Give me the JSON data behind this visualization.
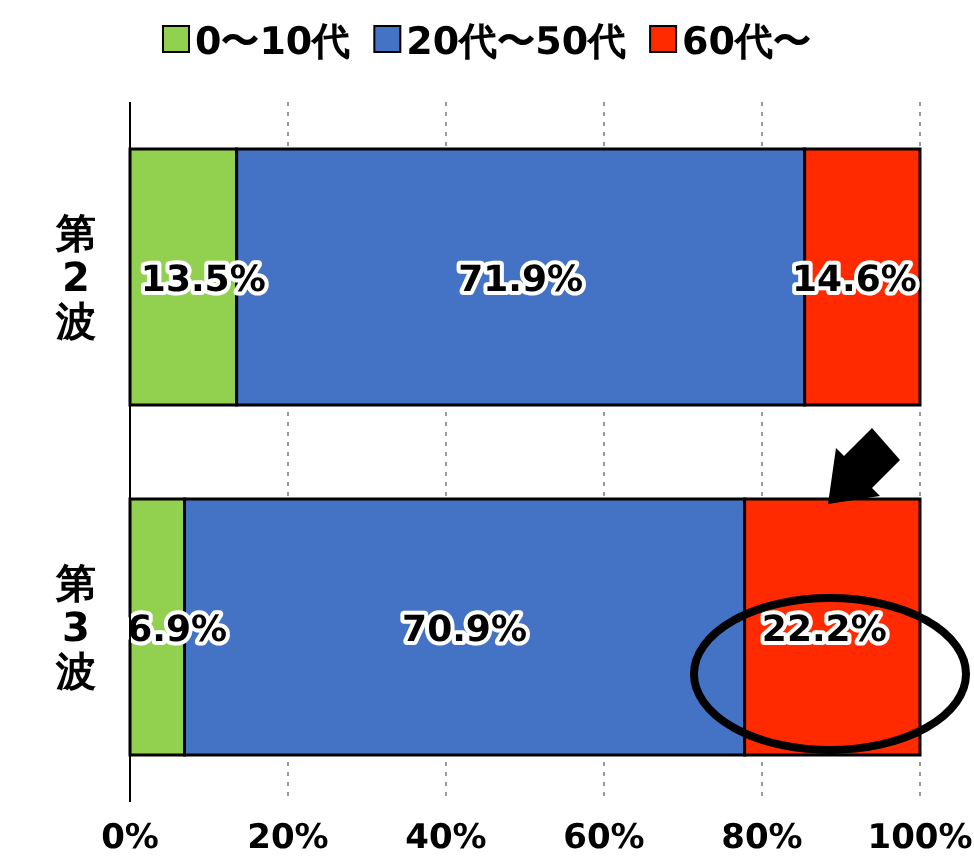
{
  "chart_data": {
    "type": "bar",
    "orientation": "horizontal",
    "stacked": true,
    "categories": [
      "第2波",
      "第3波"
    ],
    "series": [
      {
        "name": "0〜10代",
        "color": "#92d050",
        "values": [
          13.5,
          6.9
        ],
        "value_labels": [
          "13.5%",
          "6.9%"
        ]
      },
      {
        "name": "20代〜50代",
        "color": "#4472c4",
        "values": [
          71.9,
          70.9
        ],
        "value_labels": [
          "71.9%",
          "70.9%"
        ]
      },
      {
        "name": "60代〜",
        "color": "#ff2a00",
        "values": [
          14.6,
          22.2
        ],
        "value_labels": [
          "14.6%",
          "22.2%"
        ]
      }
    ],
    "xlim": [
      0,
      100
    ],
    "xticks": [
      {
        "value": 0,
        "label": "0%"
      },
      {
        "value": 20,
        "label": "20%"
      },
      {
        "value": 40,
        "label": "40%"
      },
      {
        "value": 60,
        "label": "60%"
      },
      {
        "value": 80,
        "label": "80%"
      },
      {
        "value": 100,
        "label": "100%"
      }
    ],
    "grid": "x",
    "legend": "top"
  }
}
